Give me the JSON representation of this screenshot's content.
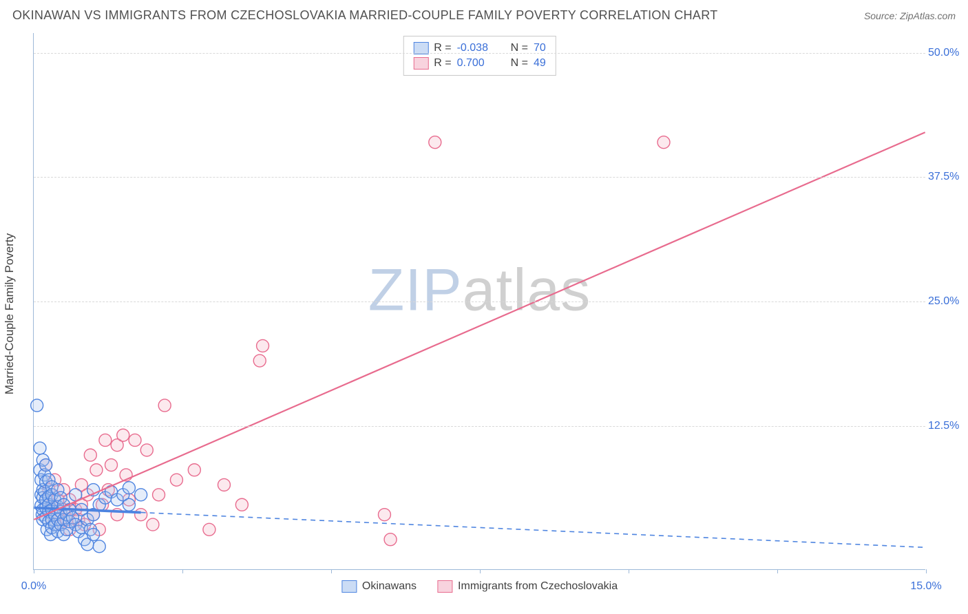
{
  "title": "OKINAWAN VS IMMIGRANTS FROM CZECHOSLOVAKIA MARRIED-COUPLE FAMILY POVERTY CORRELATION CHART",
  "source_label": "Source: ",
  "source_site": "ZipAtlas.com",
  "y_axis_title": "Married-Couple Family Poverty",
  "watermark": {
    "zip": "ZIP",
    "atlas": "atlas"
  },
  "chart": {
    "type": "scatter",
    "xlim": [
      0,
      15
    ],
    "ylim": [
      -2,
      52
    ],
    "x_ticks": [
      0,
      2.5,
      5,
      7.5,
      10,
      12.5,
      15
    ],
    "x_tick_labels": {
      "0": "0.0%",
      "15": "15.0%"
    },
    "y_ticks": [
      12.5,
      25.0,
      37.5,
      50.0
    ],
    "y_tick_labels": [
      "12.5%",
      "25.0%",
      "37.5%",
      "50.0%"
    ],
    "background_color": "#ffffff",
    "grid_color": "#d8d8d8",
    "axis_color": "#9db8d8",
    "tick_label_color": "#3a6fd8",
    "marker_radius": 9,
    "marker_stroke_width": 1.4,
    "marker_fill_opacity": 0.3,
    "trend_line_width": 2.2,
    "series": [
      {
        "id": "okinawans",
        "label": "Okinawans",
        "color_stroke": "#4d84e0",
        "color_fill": "#a9c4ee",
        "R": "-0.038",
        "N": "70",
        "trend": {
          "x1": 0,
          "y1": 4.2,
          "x2": 15,
          "y2": 0.2,
          "dashed": true,
          "solid_until_x": 1.8
        },
        "points": [
          [
            0.05,
            14.5
          ],
          [
            0.1,
            10.2
          ],
          [
            0.1,
            8.0
          ],
          [
            0.12,
            7.0
          ],
          [
            0.12,
            5.5
          ],
          [
            0.12,
            4.4
          ],
          [
            0.14,
            3.5
          ],
          [
            0.15,
            9.0
          ],
          [
            0.15,
            6.0
          ],
          [
            0.15,
            5.2
          ],
          [
            0.15,
            4.0
          ],
          [
            0.15,
            3.0
          ],
          [
            0.18,
            7.5
          ],
          [
            0.18,
            5.8
          ],
          [
            0.2,
            8.5
          ],
          [
            0.2,
            6.8
          ],
          [
            0.2,
            5.0
          ],
          [
            0.2,
            4.2
          ],
          [
            0.2,
            3.2
          ],
          [
            0.22,
            2.0
          ],
          [
            0.25,
            7.0
          ],
          [
            0.25,
            5.3
          ],
          [
            0.25,
            4.5
          ],
          [
            0.25,
            3.8
          ],
          [
            0.25,
            2.8
          ],
          [
            0.28,
            1.5
          ],
          [
            0.3,
            6.3
          ],
          [
            0.3,
            5.5
          ],
          [
            0.3,
            4.0
          ],
          [
            0.3,
            3.0
          ],
          [
            0.3,
            2.2
          ],
          [
            0.35,
            5.0
          ],
          [
            0.35,
            3.5
          ],
          [
            0.35,
            2.5
          ],
          [
            0.4,
            6.0
          ],
          [
            0.4,
            4.3
          ],
          [
            0.4,
            3.0
          ],
          [
            0.4,
            1.8
          ],
          [
            0.45,
            5.2
          ],
          [
            0.45,
            3.8
          ],
          [
            0.45,
            2.5
          ],
          [
            0.5,
            4.5
          ],
          [
            0.5,
            3.0
          ],
          [
            0.5,
            1.5
          ],
          [
            0.55,
            3.5
          ],
          [
            0.55,
            2.0
          ],
          [
            0.6,
            4.0
          ],
          [
            0.6,
            2.8
          ],
          [
            0.65,
            3.2
          ],
          [
            0.7,
            5.5
          ],
          [
            0.7,
            2.5
          ],
          [
            0.75,
            1.8
          ],
          [
            0.8,
            4.0
          ],
          [
            0.8,
            2.2
          ],
          [
            0.85,
            1.0
          ],
          [
            0.9,
            3.0
          ],
          [
            0.9,
            0.5
          ],
          [
            0.95,
            2.0
          ],
          [
            1.0,
            6.0
          ],
          [
            1.0,
            3.5
          ],
          [
            1.0,
            1.5
          ],
          [
            1.1,
            4.5
          ],
          [
            1.1,
            0.3
          ],
          [
            1.2,
            5.2
          ],
          [
            1.3,
            5.8
          ],
          [
            1.4,
            5.0
          ],
          [
            1.5,
            5.5
          ],
          [
            1.6,
            6.2
          ],
          [
            1.6,
            4.5
          ],
          [
            1.8,
            5.5
          ]
        ]
      },
      {
        "id": "czechoslovakia",
        "label": "Immigrants from Czechoslovakia",
        "color_stroke": "#e86b8e",
        "color_fill": "#f4b6c8",
        "R": "0.700",
        "N": "49",
        "trend": {
          "x1": 0,
          "y1": 3.0,
          "x2": 15,
          "y2": 42.0,
          "dashed": false
        },
        "points": [
          [
            0.2,
            8.5
          ],
          [
            0.25,
            6.0
          ],
          [
            0.3,
            4.5
          ],
          [
            0.3,
            3.0
          ],
          [
            0.35,
            7.0
          ],
          [
            0.4,
            5.0
          ],
          [
            0.4,
            3.5
          ],
          [
            0.45,
            2.5
          ],
          [
            0.5,
            6.0
          ],
          [
            0.5,
            4.0
          ],
          [
            0.55,
            3.0
          ],
          [
            0.6,
            5.0
          ],
          [
            0.6,
            2.0
          ],
          [
            0.7,
            4.0
          ],
          [
            0.75,
            3.0
          ],
          [
            0.8,
            6.5
          ],
          [
            0.8,
            4.5
          ],
          [
            0.85,
            2.5
          ],
          [
            0.9,
            5.5
          ],
          [
            0.95,
            9.5
          ],
          [
            1.0,
            3.5
          ],
          [
            1.05,
            8.0
          ],
          [
            1.1,
            2.0
          ],
          [
            1.15,
            4.5
          ],
          [
            1.2,
            11.0
          ],
          [
            1.25,
            6.0
          ],
          [
            1.3,
            8.5
          ],
          [
            1.4,
            10.5
          ],
          [
            1.4,
            3.5
          ],
          [
            1.5,
            11.5
          ],
          [
            1.55,
            7.5
          ],
          [
            1.6,
            5.0
          ],
          [
            1.7,
            11.0
          ],
          [
            1.8,
            3.5
          ],
          [
            1.9,
            10.0
          ],
          [
            2.0,
            2.5
          ],
          [
            2.1,
            5.5
          ],
          [
            2.2,
            14.5
          ],
          [
            2.4,
            7.0
          ],
          [
            2.7,
            8.0
          ],
          [
            2.95,
            2.0
          ],
          [
            3.2,
            6.5
          ],
          [
            3.5,
            4.5
          ],
          [
            3.8,
            19.0
          ],
          [
            3.85,
            20.5
          ],
          [
            5.9,
            3.5
          ],
          [
            6.0,
            1.0
          ],
          [
            6.75,
            41.0
          ],
          [
            10.6,
            41.0
          ]
        ]
      }
    ]
  },
  "stats_legend": {
    "R_label": "R =",
    "N_label": "N ="
  }
}
